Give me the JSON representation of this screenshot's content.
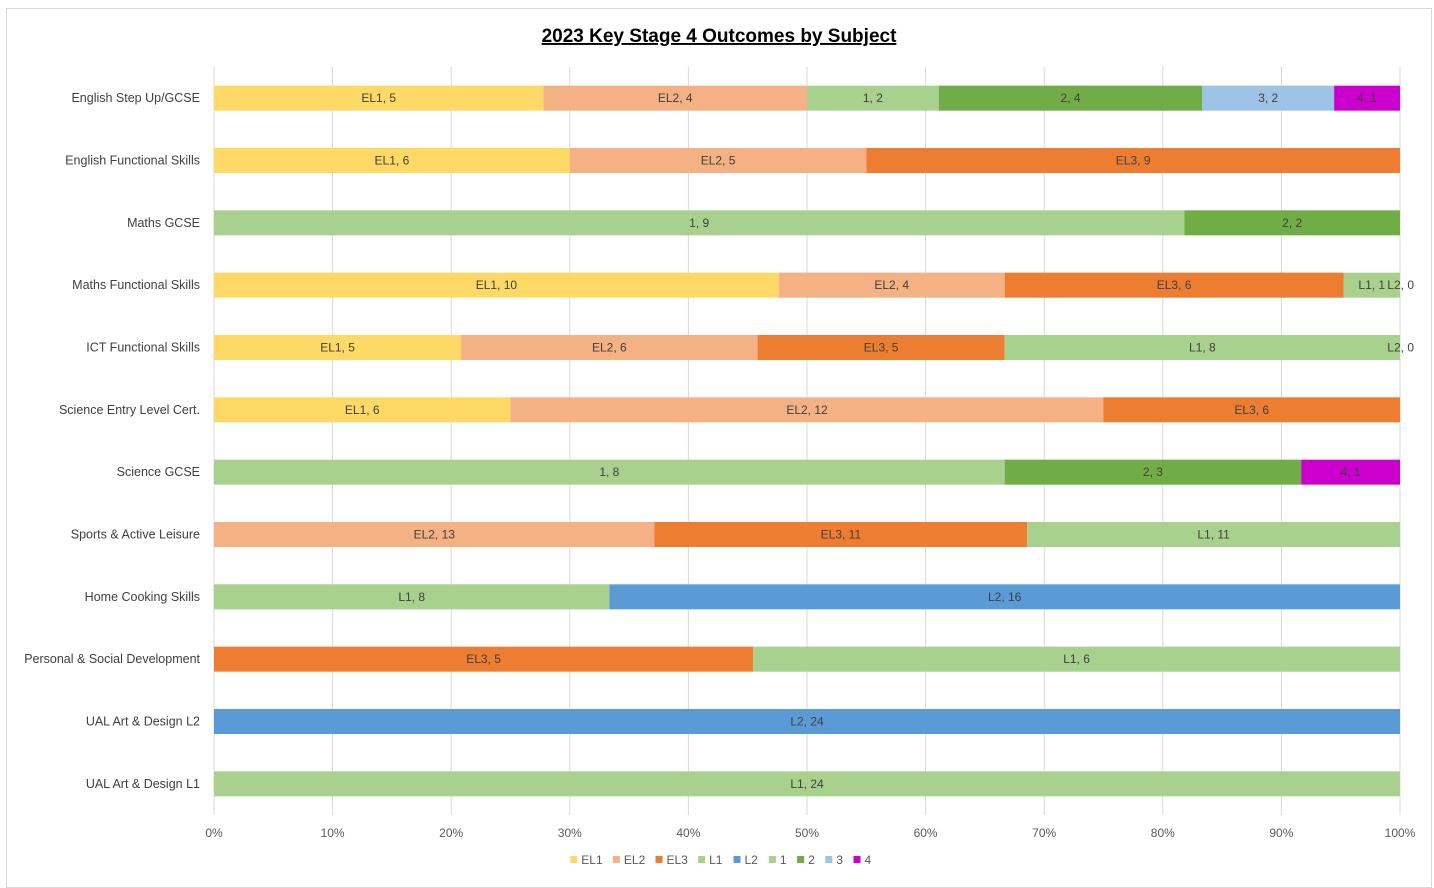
{
  "chart_data": {
    "type": "bar",
    "orientation": "horizontal",
    "stacked": "percent",
    "title": "2023 Key Stage 4 Outcomes by Subject",
    "categories": [
      "English Step Up/GCSE",
      "English Functional Skills",
      "Maths GCSE",
      "Maths Functional Skills",
      "ICT Functional Skills",
      "Science Entry Level Cert.",
      "Science GCSE",
      "Sports & Active Leisure",
      "Home Cooking Skills",
      "Personal & Social Development",
      "UAL Art  & Design L2",
      "UAL Art  & Design L1"
    ],
    "series": [
      {
        "name": "EL1",
        "color": "#FFD966",
        "values": [
          5,
          6,
          0,
          10,
          5,
          6,
          0,
          0,
          0,
          0,
          0,
          0
        ]
      },
      {
        "name": "EL2",
        "color": "#F4B183",
        "values": [
          4,
          5,
          0,
          4,
          6,
          12,
          0,
          13,
          0,
          0,
          0,
          0
        ]
      },
      {
        "name": "EL3",
        "color": "#ED7D31",
        "values": [
          0,
          9,
          0,
          6,
          5,
          6,
          0,
          11,
          0,
          5,
          0,
          0
        ]
      },
      {
        "name": "L1",
        "color": "#A9D18E",
        "values": [
          0,
          0,
          0,
          1,
          8,
          0,
          0,
          11,
          8,
          6,
          0,
          24
        ]
      },
      {
        "name": "L2",
        "color": "#5B9BD5",
        "values": [
          0,
          0,
          0,
          0,
          0,
          0,
          0,
          0,
          16,
          0,
          24,
          0
        ]
      },
      {
        "name": "1",
        "color": "#A9D18E",
        "values": [
          2,
          0,
          9,
          0,
          0,
          0,
          8,
          0,
          0,
          0,
          0,
          0
        ]
      },
      {
        "name": "2",
        "color": "#70AD47",
        "values": [
          4,
          0,
          2,
          0,
          0,
          0,
          3,
          0,
          0,
          0,
          0,
          0
        ]
      },
      {
        "name": "3",
        "color": "#9DC3E6",
        "values": [
          2,
          0,
          0,
          0,
          0,
          0,
          0,
          0,
          0,
          0,
          0,
          0
        ]
      },
      {
        "name": "4",
        "color": "#CC00CC",
        "values": [
          1,
          0,
          0,
          0,
          0,
          0,
          1,
          0,
          0,
          0,
          0,
          0
        ]
      }
    ],
    "zero_labels": [
      {
        "category": "Maths Functional Skills",
        "text": "L2, 0"
      },
      {
        "category": "ICT Functional Skills",
        "text": "L2, 0"
      }
    ],
    "x_ticks": [
      "0%",
      "10%",
      "20%",
      "30%",
      "40%",
      "50%",
      "60%",
      "70%",
      "80%",
      "90%",
      "100%"
    ],
    "xlim": [
      0,
      100
    ],
    "grid": true,
    "legend_position": "bottom"
  }
}
